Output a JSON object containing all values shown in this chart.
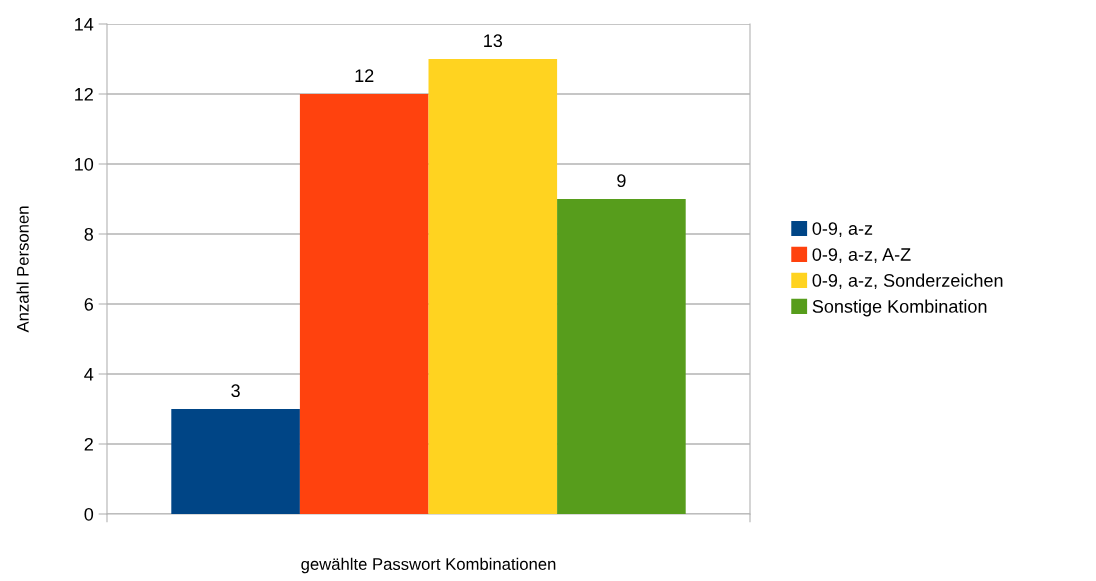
{
  "chart_data": {
    "type": "bar",
    "xlabel": "gewählte Passwort Kombinationen",
    "ylabel": "Anzahl Personen",
    "categories": [
      null
    ],
    "series": [
      {
        "name": "0-9, a-z",
        "color": "#004586",
        "values": [
          3
        ]
      },
      {
        "name": "0-9, a-z, A-Z",
        "color": "#ff420e",
        "values": [
          12
        ]
      },
      {
        "name": "0-9, a-z, Sonderzeichen",
        "color": "#ffd320",
        "values": [
          13
        ]
      },
      {
        "name": "Sonstige Kombination",
        "color": "#579d1c",
        "values": [
          9
        ]
      }
    ],
    "ylim": [
      0,
      14
    ],
    "yticks": [
      0,
      2,
      4,
      6,
      8,
      10,
      12,
      14
    ],
    "grid": "y",
    "legend": "right",
    "data_labels": true
  }
}
